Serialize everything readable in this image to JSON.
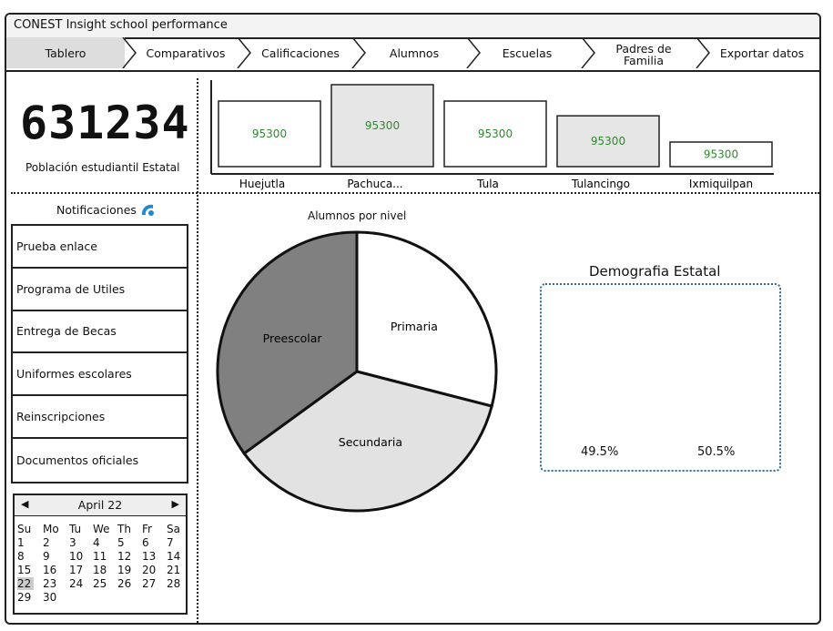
{
  "window": {
    "title": "CONEST Insight school performance"
  },
  "tabs": [
    {
      "label": "Tablero",
      "active": true
    },
    {
      "label": "Comparativos"
    },
    {
      "label": "Calificaciones"
    },
    {
      "label": "Alumnos"
    },
    {
      "label": "Escuelas"
    },
    {
      "label": "Padres de Familia"
    },
    {
      "label": "Exportar datos"
    }
  ],
  "kpi": {
    "value": "631234",
    "caption": "Población estudiantil Estatal"
  },
  "bar_chart": {
    "chart_data": {
      "type": "bar",
      "categories": [
        "Huejutla",
        "Pachuca...",
        "Tula",
        "Tulancingo",
        "Ixmiquilpan"
      ],
      "values": [
        95300,
        95300,
        95300,
        95300,
        95300
      ],
      "value_labels": [
        "95300",
        "95300",
        "95300",
        "95300",
        "95300"
      ]
    }
  },
  "notifications": {
    "title": "Notificaciones",
    "items": [
      "Prueba enlace",
      "Programa de Utiles",
      "Entrega de Becas",
      "Uniformes escolares",
      "Reinscripciones",
      "Documentos oficiales"
    ]
  },
  "calendar": {
    "month": "April 22",
    "weekdays": [
      "Su",
      "Mo",
      "Tu",
      "We",
      "Th",
      "Fr",
      "Sa"
    ],
    "days": [
      "1",
      "2",
      "3",
      "4",
      "5",
      "6",
      "7",
      "8",
      "9",
      "10",
      "11",
      "12",
      "13",
      "14",
      "15",
      "16",
      "17",
      "18",
      "19",
      "20",
      "21",
      "22",
      "23",
      "24",
      "25",
      "26",
      "27",
      "28",
      "29",
      "30"
    ],
    "selected_day": "22"
  },
  "pie_chart": {
    "chart_data": {
      "type": "pie",
      "title": "Alumnos por nivel",
      "slices": [
        {
          "label": "Primaria",
          "value": 29
        },
        {
          "label": "Secundaria",
          "value": 36
        },
        {
          "label": "Preescolar",
          "value": 35
        }
      ]
    },
    "colors": {
      "Primaria": "#ffffff",
      "Secundaria": "#e2e2e2",
      "Preescolar": "#808080"
    }
  },
  "demography": {
    "title": "Demografia Estatal",
    "values": [
      "49.5%",
      "50.5%"
    ]
  },
  "colors": {
    "bar_value_text": "#2e8b2e",
    "demo_border": "#2c6a9a",
    "notif_icon": "#1e88d8"
  }
}
